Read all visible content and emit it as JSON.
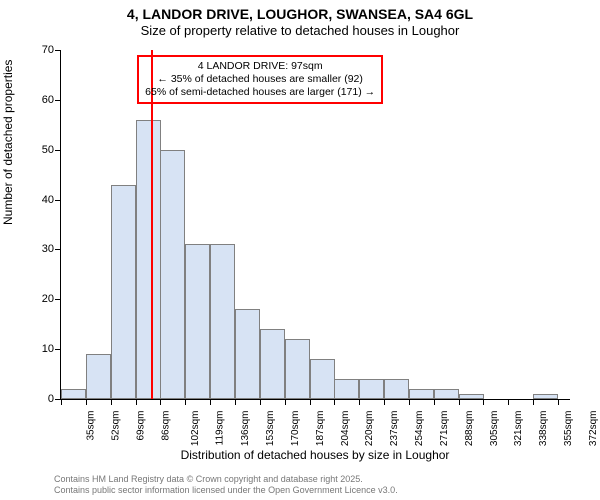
{
  "title": {
    "line1": "4, LANDOR DRIVE, LOUGHOR, SWANSEA, SA4 6GL",
    "line2": "Size of property relative to detached houses in Loughor",
    "fontsize_line1": 14,
    "fontsize_line2": 13
  },
  "chart": {
    "type": "histogram",
    "ylabel": "Number of detached properties",
    "xlabel": "Distribution of detached houses by size in Loughor",
    "label_fontsize": 12,
    "ylim": [
      0,
      70
    ],
    "ytick_step": 10,
    "yticks": [
      0,
      10,
      20,
      30,
      40,
      50,
      60,
      70
    ],
    "xtick_labels": [
      "35sqm",
      "52sqm",
      "69sqm",
      "86sqm",
      "102sqm",
      "119sqm",
      "136sqm",
      "153sqm",
      "170sqm",
      "187sqm",
      "204sqm",
      "220sqm",
      "237sqm",
      "254sqm",
      "271sqm",
      "288sqm",
      "305sqm",
      "321sqm",
      "338sqm",
      "355sqm",
      "372sqm"
    ],
    "xtick_step": 17,
    "x_origin": 35,
    "x_max": 380,
    "categories": [
      35,
      52,
      69,
      86,
      102,
      119,
      136,
      153,
      170,
      187,
      204,
      220,
      237,
      254,
      271,
      288,
      305,
      321,
      338,
      355,
      372
    ],
    "values": [
      2,
      9,
      43,
      56,
      50,
      31,
      31,
      18,
      14,
      12,
      8,
      4,
      4,
      4,
      2,
      2,
      1,
      0,
      0,
      1,
      0
    ],
    "bar_fill": "#d7e3f4",
    "bar_stroke": "#808080",
    "bar_stroke_width": 1,
    "background_color": "#ffffff",
    "reference_line": {
      "x_value": 97,
      "color": "#ff0000",
      "width": 2
    },
    "annotation": {
      "border_color": "#ff0000",
      "lines": [
        "4 LANDOR DRIVE: 97sqm",
        "← 35% of detached houses are smaller (92)",
        "65% of semi-detached houses are larger (171) →"
      ],
      "x_center_value": 170,
      "y_top_value": 69
    }
  },
  "attribution": {
    "line1": "Contains HM Land Registry data © Crown copyright and database right 2025.",
    "line2": "Contains public sector information licensed under the Open Government Licence v3.0.",
    "color": "#777777",
    "fontsize": 9
  }
}
